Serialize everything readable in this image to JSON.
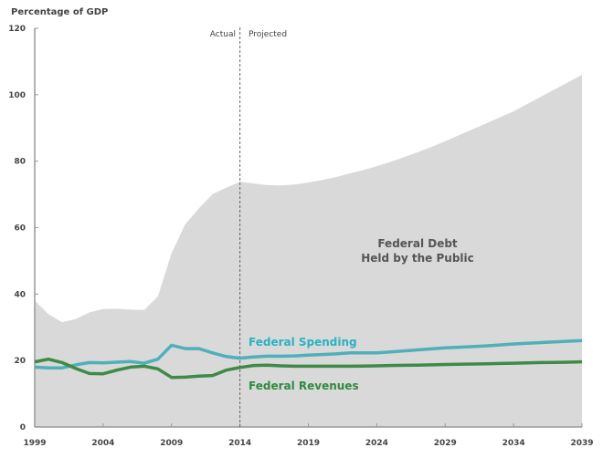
{
  "chart_data": {
    "type": "area",
    "title": "",
    "ylabel": "Percentage of GDP",
    "xlabel": "",
    "xlim": [
      1999,
      2039
    ],
    "ylim": [
      0,
      120
    ],
    "x_ticks": [
      "1999",
      "2004",
      "2009",
      "2014",
      "2019",
      "2024",
      "2029",
      "2034",
      "2039"
    ],
    "y_ticks": [
      "0",
      "20",
      "40",
      "60",
      "80",
      "100",
      "120"
    ],
    "grid": false,
    "divider": {
      "x": 2014,
      "left_label": "Actual",
      "right_label": "Projected"
    },
    "x": [
      1999,
      2000,
      2001,
      2002,
      2003,
      2004,
      2005,
      2006,
      2007,
      2008,
      2009,
      2010,
      2011,
      2012,
      2013,
      2014,
      2015,
      2016,
      2017,
      2018,
      2019,
      2020,
      2021,
      2022,
      2023,
      2024,
      2025,
      2026,
      2027,
      2028,
      2029,
      2030,
      2031,
      2032,
      2033,
      2034,
      2035,
      2036,
      2037,
      2038,
      2039
    ],
    "series": [
      {
        "name": "Federal Debt Held by the Public",
        "label_lines": [
          "Federal Debt",
          "Held by the Public"
        ],
        "style": "area",
        "color": "#d9d9d9",
        "values": [
          38,
          34,
          31.5,
          32.5,
          34.5,
          35.5,
          35.6,
          35.3,
          35.2,
          39.3,
          52.3,
          61,
          65.8,
          70.1,
          72,
          73.8,
          73.3,
          72.8,
          72.7,
          73,
          73.6,
          74.3,
          75.2,
          76.3,
          77.3,
          78.5,
          79.8,
          81.2,
          82.7,
          84.3,
          86,
          87.8,
          89.6,
          91.4,
          93.2,
          95,
          97.2,
          99.4,
          101.6,
          103.8,
          106
        ]
      },
      {
        "name": "Federal Spending",
        "style": "line",
        "color": "#4fb0bb",
        "label_color": "#29b2c2",
        "values": [
          18,
          17.8,
          17.8,
          18.7,
          19.4,
          19.3,
          19.5,
          19.7,
          19.2,
          20.4,
          24.6,
          23.6,
          23.6,
          22.3,
          21.2,
          20.7,
          21.1,
          21.3,
          21.3,
          21.4,
          21.6,
          21.8,
          22.0,
          22.3,
          22.3,
          22.3,
          22.6,
          22.9,
          23.2,
          23.5,
          23.8,
          24.0,
          24.2,
          24.4,
          24.7,
          25.0,
          25.2,
          25.4,
          25.6,
          25.8,
          26.0
        ]
      },
      {
        "name": "Federal Revenues",
        "style": "line",
        "color": "#3e8a47",
        "label_color": "#2f8a3f",
        "values": [
          19.6,
          20.4,
          19.4,
          17.6,
          16.1,
          16.0,
          17.1,
          18.0,
          18.3,
          17.5,
          14.9,
          15.0,
          15.3,
          15.5,
          17.1,
          17.9,
          18.5,
          18.6,
          18.4,
          18.3,
          18.3,
          18.3,
          18.3,
          18.3,
          18.35,
          18.4,
          18.5,
          18.55,
          18.6,
          18.7,
          18.8,
          18.9,
          18.95,
          19.0,
          19.1,
          19.2,
          19.3,
          19.4,
          19.45,
          19.5,
          19.6
        ]
      }
    ]
  }
}
